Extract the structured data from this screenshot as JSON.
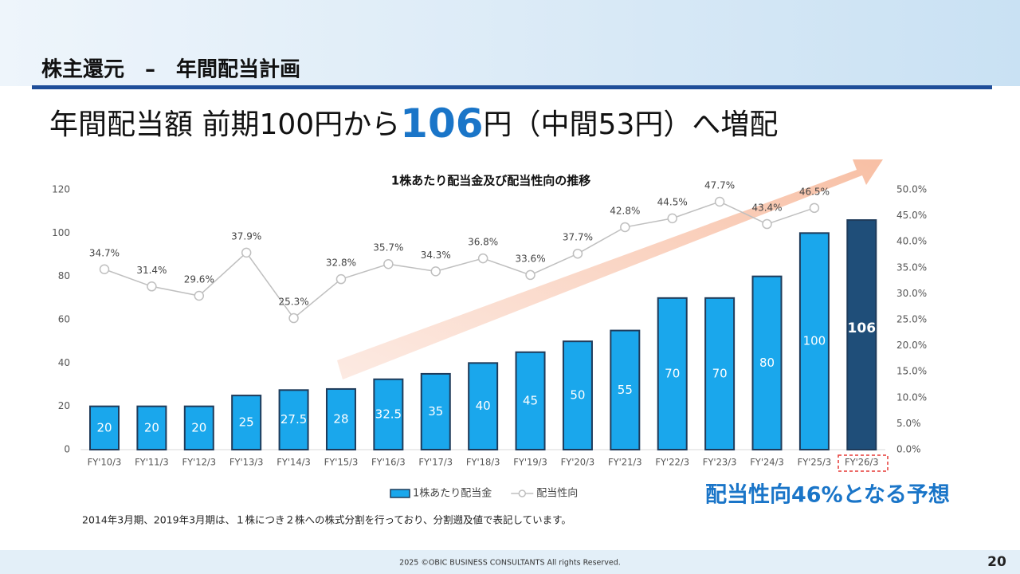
{
  "header": {
    "title": "株主還元　–　年間配当計画"
  },
  "headline": {
    "lead": "年間配当額 前期100円から",
    "emphasis": "106",
    "trail": "円（中間53円）へ増配"
  },
  "chart_data": {
    "type": "bar",
    "title": "1株あたり配当金及び配当性向の推移",
    "categories": [
      "FY'10/3",
      "FY'11/3",
      "FY'12/3",
      "FY'13/3",
      "FY'14/3",
      "FY'15/3",
      "FY'16/3",
      "FY'17/3",
      "FY'18/3",
      "FY'19/3",
      "FY'20/3",
      "FY'21/3",
      "FY'22/3",
      "FY'23/3",
      "FY'24/3",
      "FY'25/3",
      "FY'26/3"
    ],
    "series": [
      {
        "name": "1株あたり配当金",
        "type": "bar",
        "color": "#1aa7ec",
        "colors": [
          "#1aa7ec",
          "#1aa7ec",
          "#1aa7ec",
          "#1aa7ec",
          "#1aa7ec",
          "#1aa7ec",
          "#1aa7ec",
          "#1aa7ec",
          "#1aa7ec",
          "#1aa7ec",
          "#1aa7ec",
          "#1aa7ec",
          "#1aa7ec",
          "#1aa7ec",
          "#1aa7ec",
          "#1aa7ec",
          "#1f4e79"
        ],
        "values": [
          20,
          20,
          20,
          25,
          27.5,
          28,
          32.5,
          35,
          40,
          45,
          50,
          55,
          70,
          70,
          80,
          100,
          106
        ]
      },
      {
        "name": "配当性向",
        "type": "line",
        "axis": "y2",
        "color": "#bfbfbf",
        "values": [
          34.7,
          31.4,
          29.6,
          37.9,
          25.3,
          32.8,
          35.7,
          34.3,
          36.8,
          33.6,
          37.7,
          42.8,
          44.5,
          47.7,
          43.4,
          46.5,
          null
        ],
        "value_labels": [
          "34.7%",
          "31.4%",
          "29.6%",
          "37.9%",
          "25.3%",
          "32.8%",
          "35.7%",
          "34.3%",
          "36.8%",
          "33.6%",
          "37.7%",
          "42.8%",
          "44.5%",
          "47.7%",
          "43.4%",
          "46.5%",
          null
        ]
      }
    ],
    "ylim": [
      0,
      120
    ],
    "yticks": [
      0,
      20,
      40,
      60,
      80,
      100,
      120
    ],
    "y2lim": [
      0,
      50
    ],
    "y2ticks": [
      {
        "value": 0,
        "label": "0.0%"
      },
      {
        "value": 5,
        "label": "5.0%"
      },
      {
        "value": 10,
        "label": "10.0%"
      },
      {
        "value": 15,
        "label": "15.0%"
      },
      {
        "value": 20,
        "label": "20.0%"
      },
      {
        "value": 25,
        "label": "25.0%"
      },
      {
        "value": 30,
        "label": "30.0%"
      },
      {
        "value": 35,
        "label": "35.0%"
      },
      {
        "value": 40,
        "label": "40.0%"
      },
      {
        "value": 45,
        "label": "45.0%"
      },
      {
        "value": 50,
        "label": "50.0%"
      }
    ],
    "legend": "bottom",
    "grid": false
  },
  "callout": "配当性向46%となる予想",
  "footnote": "2014年3月期、2019年3月期は、１株につき２株への株式分割を行っており、分割遡及値で表記しています。",
  "footer": {
    "copyright": "2025 ©OBIC BUSINESS CONSULTANTS All rights Reserved.",
    "page": "20"
  }
}
